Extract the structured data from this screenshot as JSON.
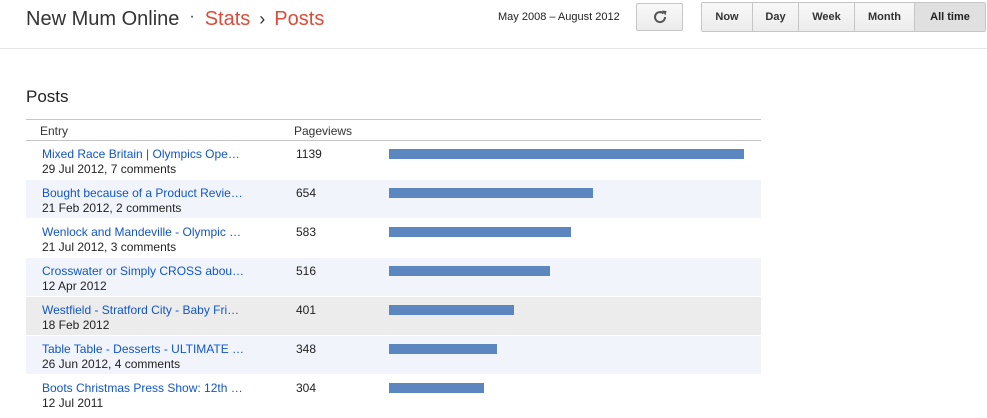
{
  "header": {
    "blog_name": "New Mum Online",
    "separator_dot": "·",
    "crumb_stats": "Stats",
    "crumb_sep": "›",
    "crumb_posts": "Posts",
    "date_range": "May 2008 – August 2012",
    "refresh_icon": "refresh-icon",
    "periods": [
      "Now",
      "Day",
      "Week",
      "Month",
      "All time"
    ],
    "active_period": "All time"
  },
  "section": {
    "title": "Posts"
  },
  "table": {
    "columns": {
      "entry": "Entry",
      "pageviews": "Pageviews"
    },
    "max_pageviews": 1139,
    "bar_color": "#5b86c0",
    "rows": [
      {
        "title": "Mixed Race Britain | Olympics Ope…",
        "meta": "29 Jul 2012, 7 comments",
        "pageviews": 1139
      },
      {
        "title": "Bought because of a Product Revie…",
        "meta": "21 Feb 2012, 2 comments",
        "pageviews": 654
      },
      {
        "title": "Wenlock and Mandeville - Olympic …",
        "meta": "21 Jul 2012, 3 comments",
        "pageviews": 583
      },
      {
        "title": "Crosswater or Simply CROSS abou…",
        "meta": "12 Apr 2012",
        "pageviews": 516
      },
      {
        "title": "Westfield - Stratford City - Baby Fri…",
        "meta": "18 Feb 2012",
        "pageviews": 401
      },
      {
        "title": "Table Table - Desserts - ULTIMATE …",
        "meta": "26 Jun 2012, 4 comments",
        "pageviews": 348
      },
      {
        "title": "Boots Christmas Press Show: 12th …",
        "meta": "12 Jul 2011",
        "pageviews": 304
      }
    ]
  }
}
